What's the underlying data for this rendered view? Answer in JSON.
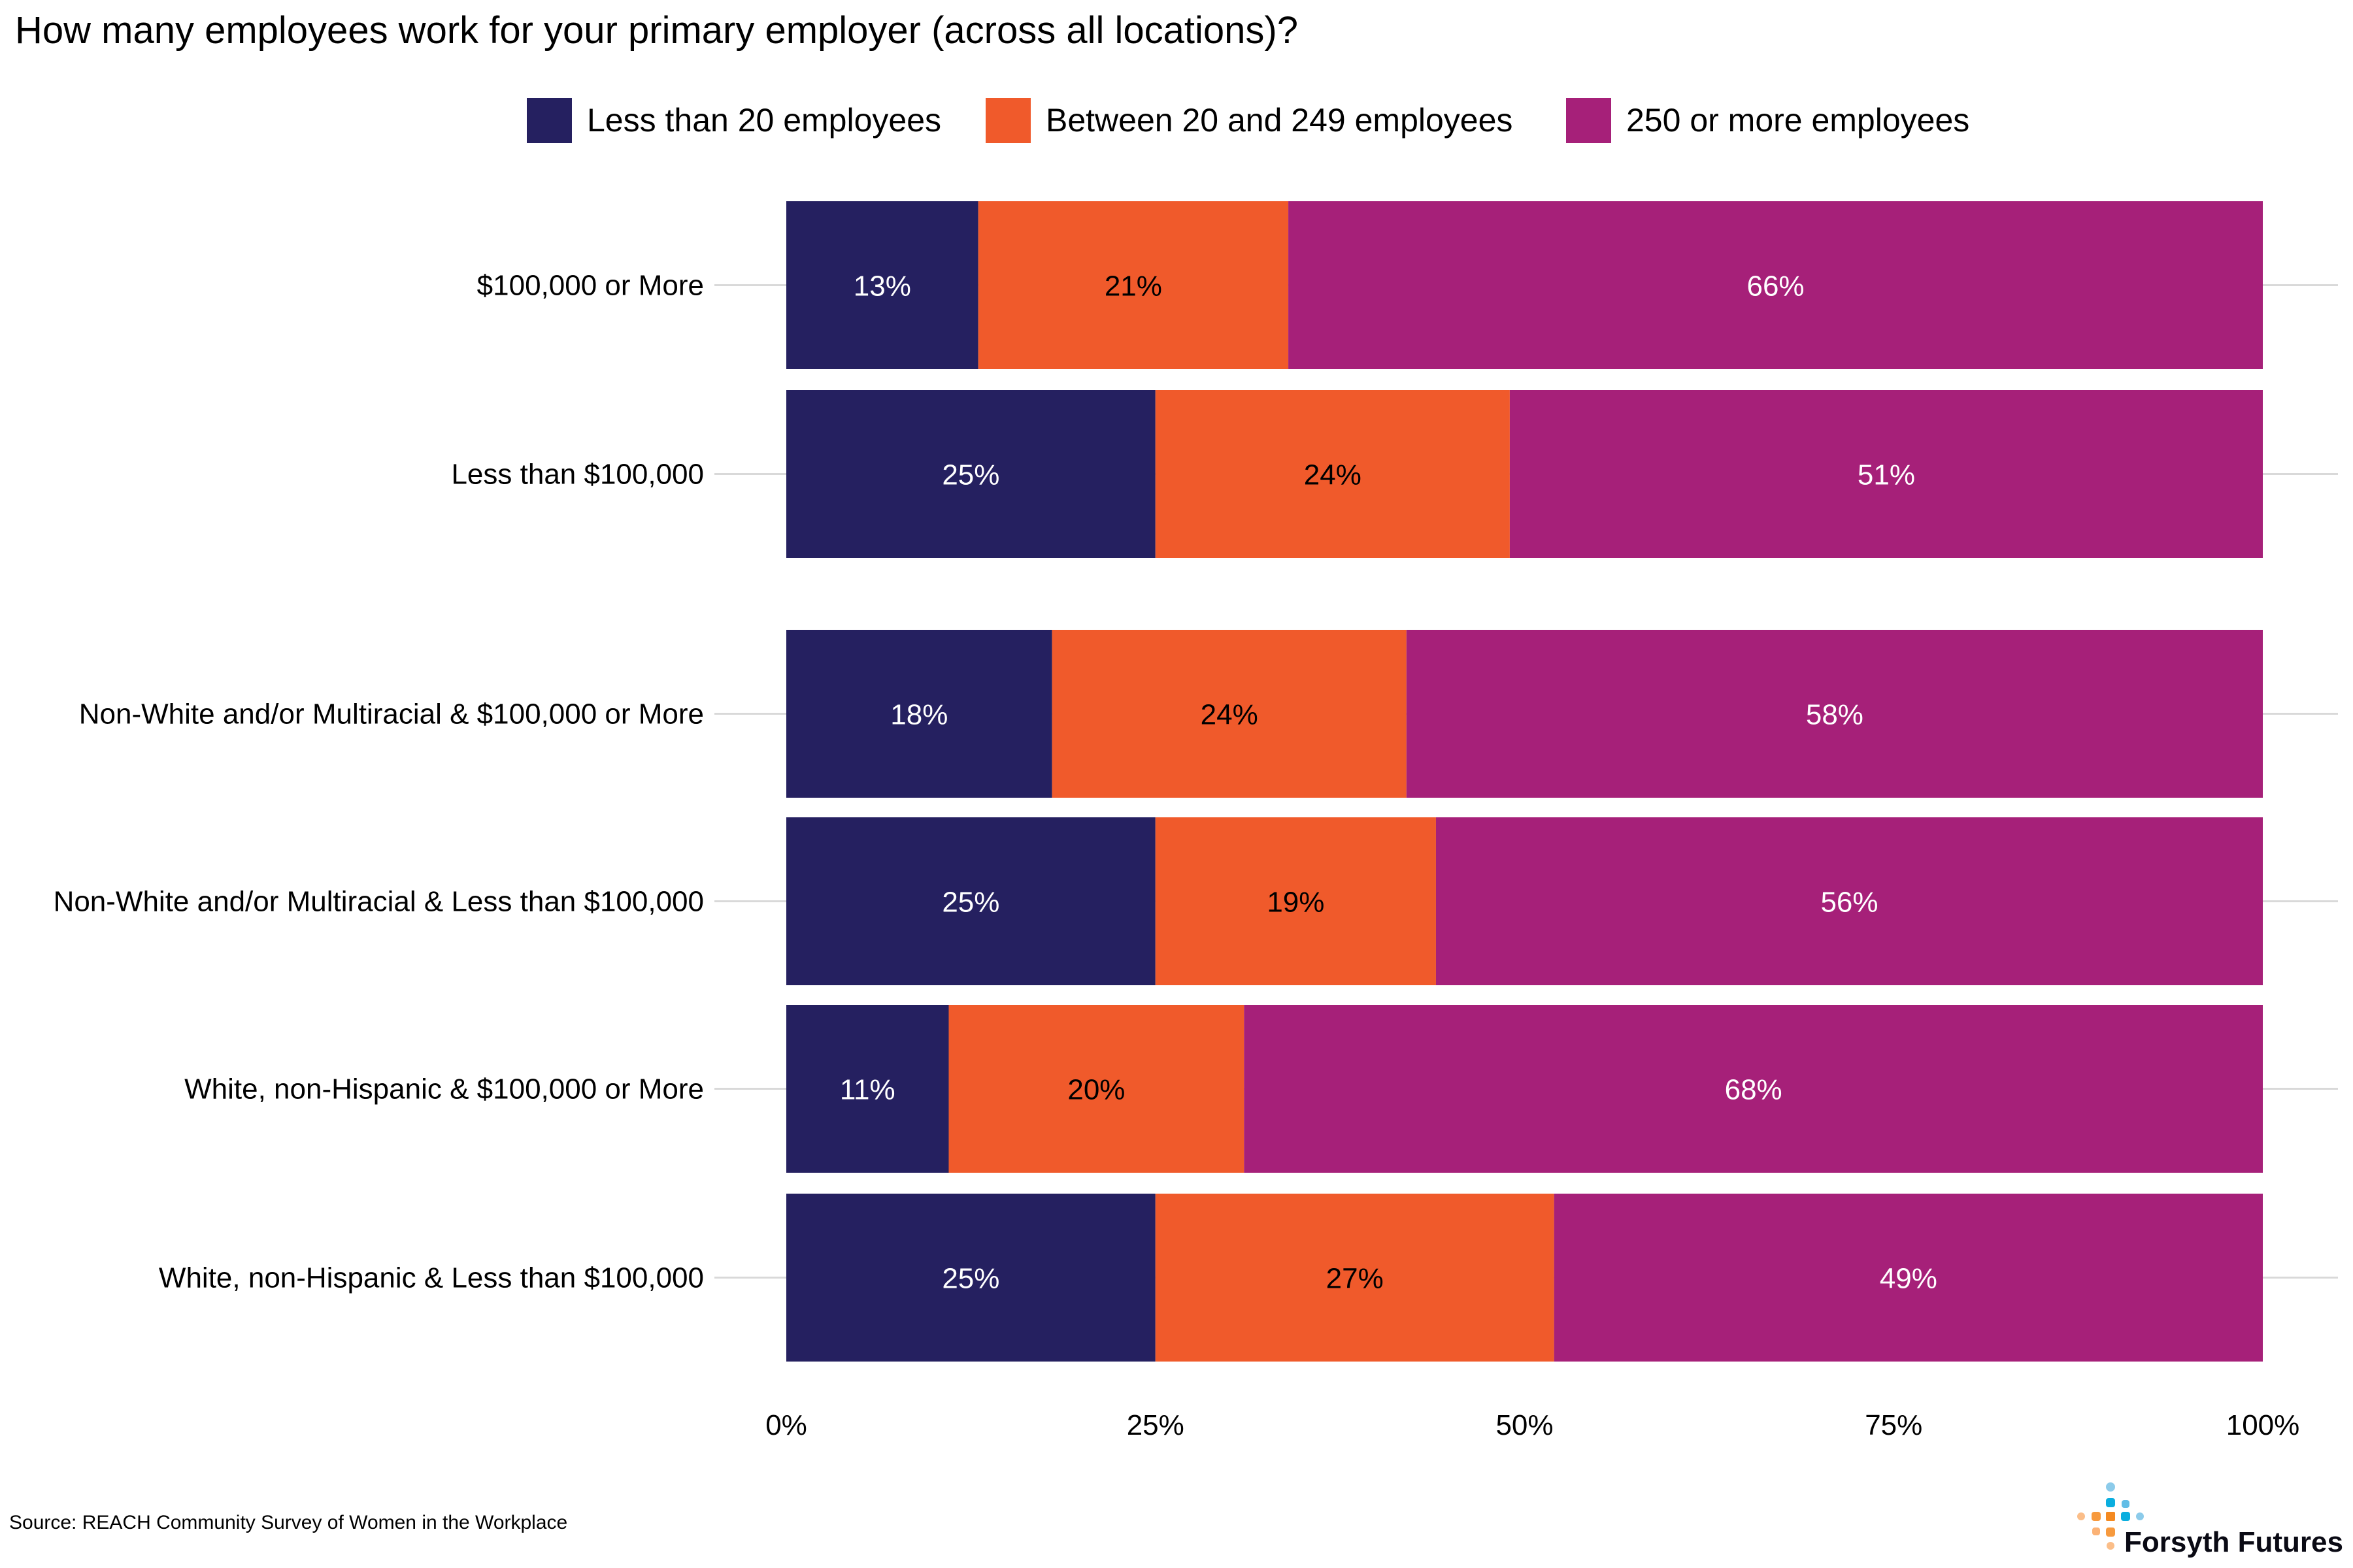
{
  "chart_data": {
    "type": "bar",
    "orientation": "horizontal",
    "stacked": true,
    "title": "How many employees work for your primary employer (across all locations)?",
    "xlabel": "",
    "ylabel": "",
    "xlim": [
      0,
      100
    ],
    "x_ticks": [
      "0%",
      "25%",
      "50%",
      "75%",
      "100%"
    ],
    "grid": "horizontal lines at categories",
    "legend_position": "top",
    "categories": [
      "$100,000 or More",
      "Less than $100,000",
      "Non-White and/or Multiracial & $100,000 or More",
      "Non-White and/or Multiracial & Less than $100,000",
      "White, non-Hispanic & $100,000 or More",
      "White, non-Hispanic & Less than $100,000"
    ],
    "series": [
      {
        "name": "Less than 20 employees",
        "color": "#252060",
        "label_color": "#ffffff",
        "values": [
          13,
          25,
          18,
          25,
          11,
          25
        ]
      },
      {
        "name": "Between 20 and 249 employees",
        "color": "#F05A2B",
        "label_color": "#000000",
        "values": [
          21,
          24,
          24,
          19,
          20,
          27
        ]
      },
      {
        "name": "250 or more employees",
        "color": "#A62079",
        "label_color": "#ffffff",
        "values": [
          66,
          51,
          58,
          56,
          68,
          49
        ]
      }
    ]
  },
  "source": "Source: REACH Community Survey of Women in the Workplace",
  "logo": {
    "text": "Forsyth Futures"
  }
}
